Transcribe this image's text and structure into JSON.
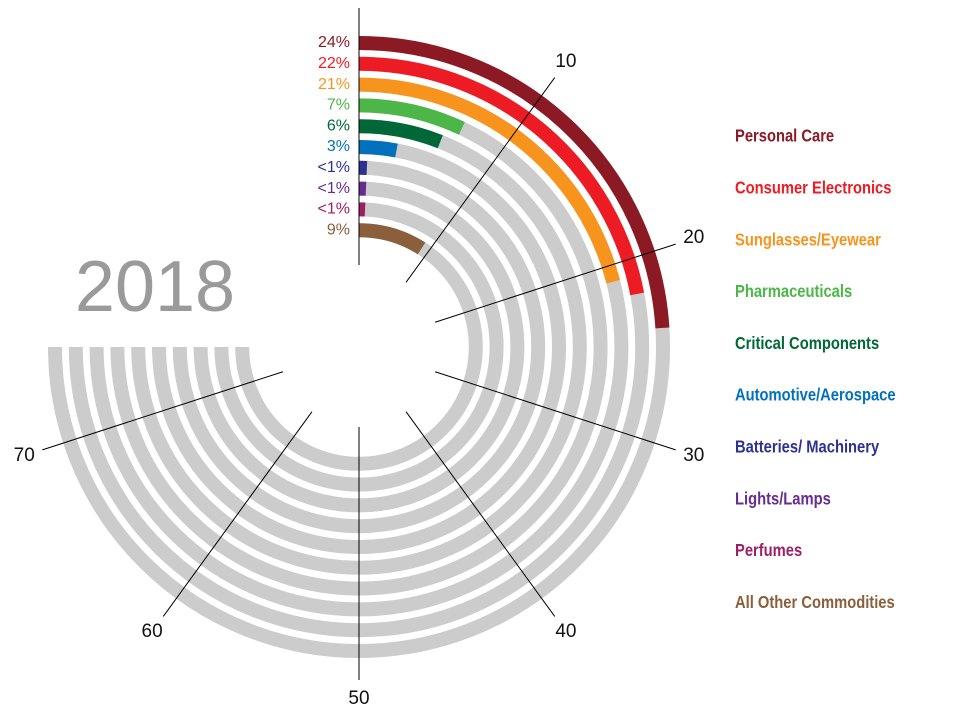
{
  "chart_data": {
    "type": "radial_bar",
    "title": "2018",
    "categories": [
      "Personal Care",
      "Consumer Electronics",
      "Sunglasses/Eyewear",
      "Pharmaceuticals",
      "Critical Components",
      "Automotive/Aerospace",
      "Batteries/ Machinery",
      "Lights/Lamps",
      "Perfumes",
      "All Other Commodities"
    ],
    "values": [
      24,
      22,
      21,
      7,
      6,
      3,
      0.7,
      0.7,
      0.7,
      9
    ],
    "value_labels": [
      "24%",
      "22%",
      "21%",
      "7%",
      "6%",
      "3%",
      "<1%",
      "<1%",
      "<1%",
      "9%"
    ],
    "colors": [
      "#8b1a24",
      "#ed1c24",
      "#f7941d",
      "#4cb748",
      "#006838",
      "#0071bc",
      "#2e3192",
      "#662d91",
      "#9e1f63",
      "#8b5e3c"
    ],
    "track_color": "#cccccc",
    "xlim": [
      0,
      75
    ],
    "xticks": [
      10,
      20,
      30,
      40,
      50,
      60,
      70
    ],
    "legend": "right"
  }
}
